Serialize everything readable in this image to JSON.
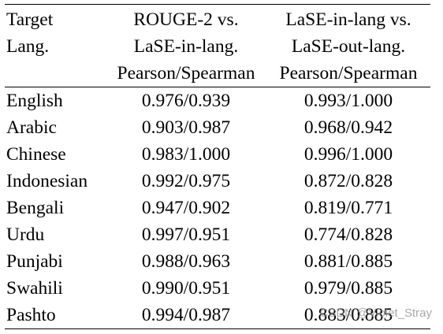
{
  "table": {
    "header": {
      "col0": [
        "Target",
        "Lang.",
        ""
      ],
      "col1": [
        "ROUGE-2 vs.",
        "LaSE-in-lang.",
        "Pearson/Spearman"
      ],
      "col2": [
        "LaSE-in-lang vs.",
        "LaSE-out-lang.",
        "Pearson/Spearman"
      ]
    },
    "rows": [
      {
        "lang": "English",
        "rouge_vs_lase_in": "0.976/0.939",
        "lase_in_vs_out": "0.993/1.000"
      },
      {
        "lang": "Arabic",
        "rouge_vs_lase_in": "0.903/0.987",
        "lase_in_vs_out": "0.968/0.942"
      },
      {
        "lang": "Chinese",
        "rouge_vs_lase_in": "0.983/1.000",
        "lase_in_vs_out": "0.996/1.000"
      },
      {
        "lang": "Indonesian",
        "rouge_vs_lase_in": "0.992/0.975",
        "lase_in_vs_out": "0.872/0.828"
      },
      {
        "lang": "Bengali",
        "rouge_vs_lase_in": "0.947/0.902",
        "lase_in_vs_out": "0.819/0.771"
      },
      {
        "lang": "Urdu",
        "rouge_vs_lase_in": "0.997/0.951",
        "lase_in_vs_out": "0.774/0.828"
      },
      {
        "lang": "Punjabi",
        "rouge_vs_lase_in": "0.988/0.963",
        "lase_in_vs_out": "0.881/0.885"
      },
      {
        "lang": "Swahili",
        "rouge_vs_lase_in": "0.990/0.951",
        "lase_in_vs_out": "0.979/0.885"
      },
      {
        "lang": "Pashto",
        "rouge_vs_lase_in": "0.994/0.987",
        "lase_in_vs_out": "0.883/0.885"
      }
    ]
  },
  "watermark": "CSDN @Violet_Stray"
}
